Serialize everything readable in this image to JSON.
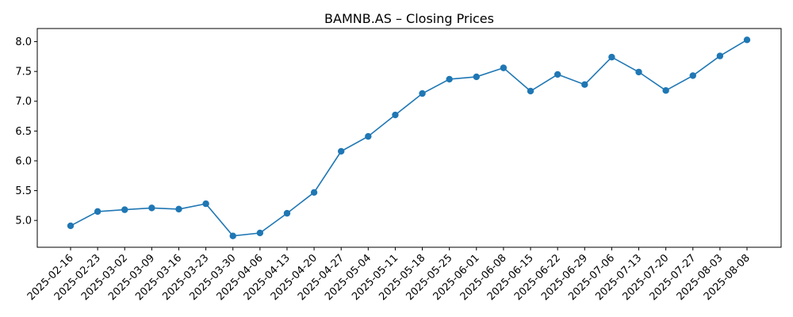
{
  "chart_data": {
    "type": "line",
    "title": "BAMNB.AS – Closing Prices",
    "xlabel": "",
    "ylabel": "",
    "categories": [
      "2025-02-16",
      "2025-02-23",
      "2025-03-02",
      "2025-03-09",
      "2025-03-16",
      "2025-03-23",
      "2025-03-30",
      "2025-04-06",
      "2025-04-13",
      "2025-04-20",
      "2025-04-27",
      "2025-05-04",
      "2025-05-11",
      "2025-05-18",
      "2025-05-25",
      "2025-06-01",
      "2025-06-08",
      "2025-06-15",
      "2025-06-22",
      "2025-06-29",
      "2025-07-06",
      "2025-07-13",
      "2025-07-20",
      "2025-07-27",
      "2025-08-03",
      "2025-08-08"
    ],
    "values": [
      4.91,
      5.15,
      5.18,
      5.21,
      5.19,
      5.28,
      4.74,
      4.79,
      5.12,
      5.47,
      6.16,
      6.41,
      6.77,
      7.13,
      7.37,
      7.41,
      7.56,
      7.17,
      7.45,
      7.28,
      7.74,
      7.49,
      7.18,
      7.43,
      7.76,
      8.03
    ],
    "ylim": [
      4.55,
      8.22
    ],
    "yticks": [
      5.0,
      5.5,
      6.0,
      6.5,
      7.0,
      7.5,
      8.0
    ],
    "ytick_labels": [
      "5.0",
      "5.5",
      "6.0",
      "6.5",
      "7.0",
      "7.5",
      "8.0"
    ],
    "grid": false,
    "color": "#1f77b4"
  }
}
